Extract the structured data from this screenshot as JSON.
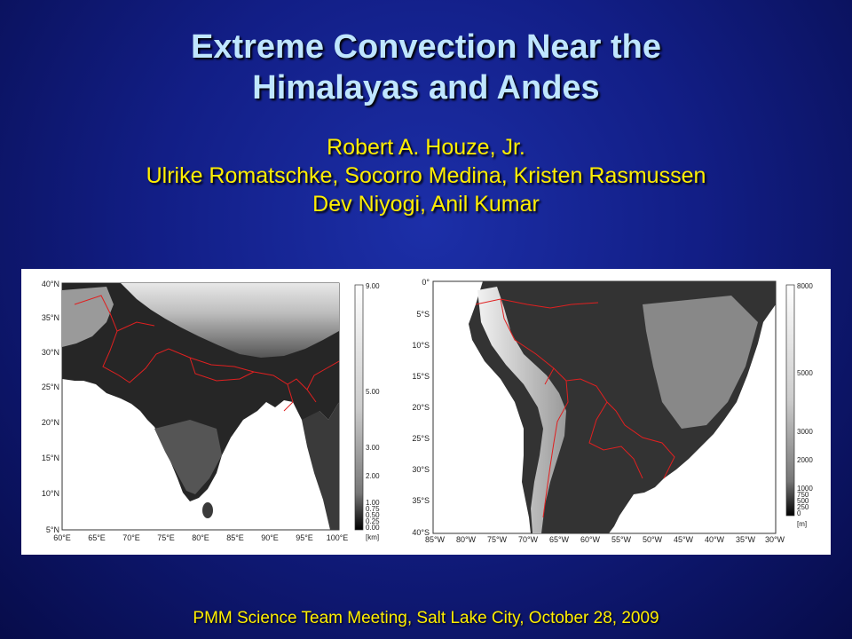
{
  "slide": {
    "title_line1": "Extreme Convection Near the",
    "title_line2": "Himalayas and Andes",
    "authors": [
      "Robert A. Houze, Jr.",
      "Ulrike Romatschke, Socorro Medina, Kristen Rasmussen",
      "Dev Niyogi, Anil Kumar"
    ],
    "footer": "PMM Science Team Meeting, Salt Lake City, October 28, 2009"
  },
  "map_left": {
    "region": "South Asia / Himalayas",
    "lat_labels": [
      "40°N",
      "35°N",
      "30°N",
      "25°N",
      "20°N",
      "15°N",
      "10°N",
      "5°N"
    ],
    "lon_labels": [
      "60°E",
      "65°E",
      "70°E",
      "75°E",
      "80°E",
      "85°E",
      "90°E",
      "95°E",
      "100°E"
    ],
    "colorbar_labels": [
      "9.00",
      "5.00",
      "3.00",
      "2.00",
      "1.00",
      "0.75",
      "0.50",
      "0.25",
      "0.00"
    ],
    "colorbar_unit": "[km]",
    "colors": {
      "land": "#2a2a2a",
      "ocean": "#ffffff",
      "border": "#e02020"
    }
  },
  "map_right": {
    "region": "South America / Andes",
    "lat_labels": [
      "0°",
      "5°S",
      "10°S",
      "15°S",
      "20°S",
      "25°S",
      "30°S",
      "35°S",
      "40°S"
    ],
    "lon_labels": [
      "85°W",
      "80°W",
      "75°W",
      "70°W",
      "65°W",
      "60°W",
      "55°W",
      "50°W",
      "45°W",
      "40°W",
      "35°W",
      "30°W"
    ],
    "colorbar_labels": [
      "8000",
      "5000",
      "3000",
      "2000",
      "1000",
      "750",
      "500",
      "250",
      "0"
    ],
    "colorbar_unit": "[m]",
    "colors": {
      "land": "#2a2a2a",
      "ocean": "#ffffff",
      "border": "#e02020"
    }
  }
}
